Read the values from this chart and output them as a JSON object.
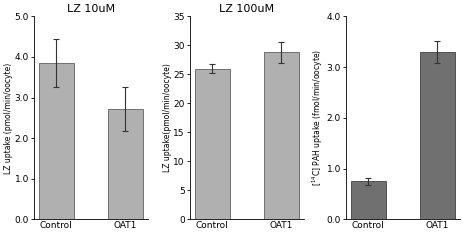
{
  "plot1": {
    "title": "LZ 10uM",
    "categories": [
      "Control",
      "OAT1"
    ],
    "values": [
      3.85,
      2.72
    ],
    "errors": [
      0.6,
      0.55
    ],
    "ylim": [
      0,
      5.0
    ],
    "yticks": [
      0.0,
      1.0,
      2.0,
      3.0,
      4.0,
      5.0
    ],
    "ylabel": "LZ uptake (pmol/min/oocyte)",
    "bar_color": "#b0b0b0",
    "bar_edgecolor": "#606060"
  },
  "plot2": {
    "title": "LZ 100uM",
    "categories": [
      "Control",
      "OAT1"
    ],
    "values": [
      26.0,
      28.8
    ],
    "errors": [
      0.8,
      1.8
    ],
    "ylim": [
      0,
      35
    ],
    "yticks": [
      0,
      5,
      10,
      15,
      20,
      25,
      30,
      35
    ],
    "ylabel": "LZ uptake(pmol/min/oocyte)",
    "bar_color": "#b0b0b0",
    "bar_edgecolor": "#606060"
  },
  "plot3": {
    "title": "",
    "categories": [
      "Control",
      "OAT1"
    ],
    "values": [
      0.75,
      3.3
    ],
    "errors": [
      0.07,
      0.22
    ],
    "ylim": [
      0.0,
      4.0
    ],
    "yticks": [
      0.0,
      1.0,
      2.0,
      3.0,
      4.0
    ],
    "ylabel": "[14C] PAH uptake (fmol/min/oocyte)",
    "bar_color": "#707070",
    "bar_edgecolor": "#404040"
  },
  "background_color": "#ffffff",
  "title_fontsize": 8,
  "label_fontsize": 5.5,
  "tick_fontsize": 6.5
}
